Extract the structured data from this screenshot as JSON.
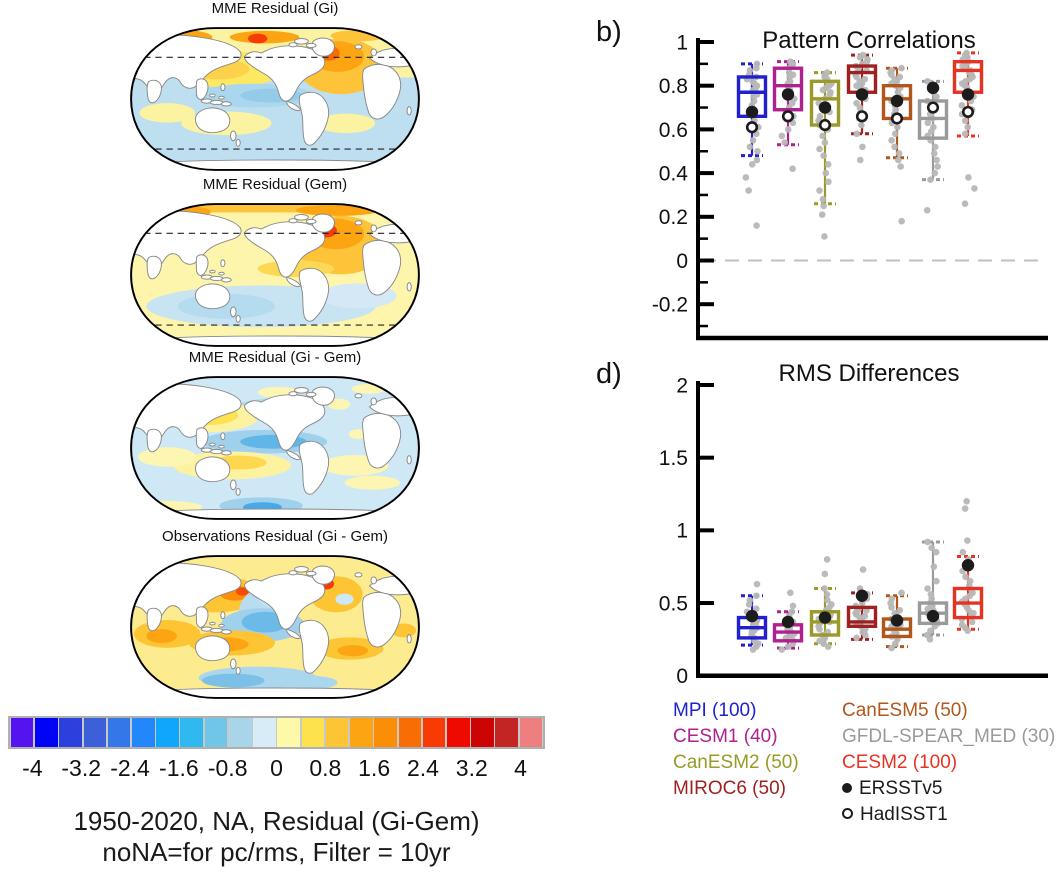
{
  "panels": {
    "b": {
      "label": "b)"
    },
    "d": {
      "label": "d)"
    }
  },
  "maps": [
    {
      "id": "gi",
      "title": "MME Residual (Gi)",
      "dashed_latitudes": true
    },
    {
      "id": "gem",
      "title": "MME Residual (Gem)",
      "dashed_latitudes": true
    },
    {
      "id": "gigem",
      "title": "MME Residual (Gi - Gem)",
      "dashed_latitudes": false
    },
    {
      "id": "obs",
      "title": "Observations Residual (Gi - Gem)",
      "dashed_latitudes": false
    }
  ],
  "colorbar": {
    "colors": [
      "#5414f0",
      "#0004f5",
      "#2b40dc",
      "#3c60d8",
      "#3377e8",
      "#2187fa",
      "#0fa6fb",
      "#30b9ee",
      "#6fc6e6",
      "#a8d5ea",
      "#d8ecf7",
      "#fdf9a8",
      "#fde14d",
      "#fdc434",
      "#fca411",
      "#fb8e06",
      "#f96d05",
      "#f83b05",
      "#ef0a00",
      "#cc0403",
      "#c32424",
      "#ee7f7f"
    ],
    "labels": [
      "-4",
      "-3.2",
      "-2.4",
      "-1.6",
      "-0.8",
      "0",
      "0.8",
      "1.6",
      "2.4",
      "3.2",
      "4"
    ]
  },
  "caption": {
    "line1": "1950-2020, NA, Residual (Gi-Gem)",
    "line2": "noNA=for pc/rms, Filter = 10yr"
  },
  "models": [
    {
      "label": "MPI (100)",
      "name": "MPI",
      "color": "#2020cf"
    },
    {
      "label": "CESM1 (40)",
      "name": "CESM1",
      "color": "#b02190"
    },
    {
      "label": "CanESM2 (50)",
      "name": "CanESM2",
      "color": "#9a9a28"
    },
    {
      "label": "MIROC6 (50)",
      "name": "MIROC6",
      "color": "#9e2121"
    },
    {
      "label": "CanESM5 (50)",
      "name": "CanESM5",
      "color": "#b2571c"
    },
    {
      "label": "GFDL-SPEAR_MED (30)",
      "name": "GFDL-SPEAR_MED",
      "color": "#9a9a9a"
    },
    {
      "label": "CESM2 (100)",
      "name": "CESM2",
      "color": "#e63323"
    }
  ],
  "obs_markers": [
    {
      "label": "ERSSTv5",
      "marker": "filled-circle"
    },
    {
      "label": "HadISST1",
      "marker": "open-circle"
    }
  ],
  "chart_data": [
    {
      "type": "box",
      "panel": "b",
      "title": "Pattern Correlations",
      "ylim": [
        -0.355,
        1.03
      ],
      "yticks_major": [
        1,
        0.8,
        0.6,
        0.4,
        0.2,
        0,
        -0.2
      ],
      "ytick_labels": [
        "1",
        "0.8",
        "0.6",
        "0.4",
        "0.2",
        "0",
        "-0.2"
      ],
      "yticks_minor": [
        0.9,
        0.7,
        0.5,
        0.3,
        0.1,
        -0.1,
        -0.3
      ],
      "zero_dashed_line": 0,
      "series": [
        {
          "model": "MPI",
          "q1": 0.66,
          "median": 0.77,
          "q3": 0.84,
          "whisker_low": 0.48,
          "whisker_high": 0.9,
          "ersstv5": 0.68,
          "hadisst1": 0.61,
          "members": [
            0.9,
            0.88,
            0.87,
            0.85,
            0.84,
            0.83,
            0.82,
            0.81,
            0.8,
            0.79,
            0.78,
            0.77,
            0.76,
            0.75,
            0.73,
            0.71,
            0.69,
            0.67,
            0.64,
            0.61,
            0.58,
            0.55,
            0.52,
            0.5,
            0.46,
            0.44,
            0.38,
            0.32,
            0.16
          ]
        },
        {
          "model": "CESM1",
          "q1": 0.69,
          "median": 0.8,
          "q3": 0.88,
          "whisker_low": 0.53,
          "whisker_high": 0.91,
          "ersstv5": 0.76,
          "hadisst1": 0.66,
          "members": [
            0.91,
            0.9,
            0.89,
            0.88,
            0.86,
            0.85,
            0.84,
            0.82,
            0.81,
            0.8,
            0.78,
            0.76,
            0.74,
            0.72,
            0.7,
            0.68,
            0.66,
            0.63,
            0.6,
            0.57,
            0.54,
            0.42
          ]
        },
        {
          "model": "CanESM2",
          "q1": 0.62,
          "median": 0.74,
          "q3": 0.82,
          "whisker_low": 0.26,
          "whisker_high": 0.86,
          "ersstv5": 0.7,
          "hadisst1": 0.62,
          "members": [
            0.86,
            0.85,
            0.84,
            0.83,
            0.82,
            0.81,
            0.8,
            0.79,
            0.78,
            0.77,
            0.76,
            0.74,
            0.72,
            0.7,
            0.68,
            0.66,
            0.64,
            0.62,
            0.6,
            0.57,
            0.54,
            0.51,
            0.48,
            0.44,
            0.4,
            0.36,
            0.32,
            0.28,
            0.25,
            0.21,
            0.11
          ]
        },
        {
          "model": "MIROC6",
          "q1": 0.77,
          "median": 0.86,
          "q3": 0.89,
          "whisker_low": 0.58,
          "whisker_high": 0.94,
          "ersstv5": 0.76,
          "hadisst1": 0.66,
          "members": [
            0.94,
            0.93,
            0.92,
            0.91,
            0.9,
            0.89,
            0.88,
            0.87,
            0.86,
            0.85,
            0.84,
            0.83,
            0.82,
            0.81,
            0.8,
            0.79,
            0.78,
            0.76,
            0.74,
            0.72,
            0.7,
            0.68,
            0.65,
            0.62,
            0.58,
            0.52,
            0.46
          ]
        },
        {
          "model": "CanESM5",
          "q1": 0.65,
          "median": 0.74,
          "q3": 0.8,
          "whisker_low": 0.47,
          "whisker_high": 0.88,
          "ersstv5": 0.73,
          "hadisst1": 0.65,
          "members": [
            0.88,
            0.87,
            0.86,
            0.85,
            0.84,
            0.83,
            0.82,
            0.81,
            0.8,
            0.79,
            0.77,
            0.75,
            0.73,
            0.71,
            0.69,
            0.67,
            0.65,
            0.63,
            0.61,
            0.58,
            0.55,
            0.52,
            0.49,
            0.46,
            0.43,
            0.18
          ]
        },
        {
          "model": "GFDL-SPEAR_MED",
          "q1": 0.56,
          "median": 0.65,
          "q3": 0.73,
          "whisker_low": 0.37,
          "whisker_high": 0.82,
          "ersstv5": 0.79,
          "hadisst1": 0.7,
          "members": [
            0.82,
            0.81,
            0.79,
            0.77,
            0.75,
            0.73,
            0.71,
            0.69,
            0.67,
            0.65,
            0.63,
            0.61,
            0.59,
            0.57,
            0.55,
            0.52,
            0.49,
            0.46,
            0.43,
            0.4,
            0.37,
            0.23
          ]
        },
        {
          "model": "CESM2",
          "q1": 0.77,
          "median": 0.87,
          "q3": 0.91,
          "whisker_low": 0.57,
          "whisker_high": 0.95,
          "ersstv5": 0.76,
          "hadisst1": 0.68,
          "members": [
            0.95,
            0.94,
            0.93,
            0.92,
            0.91,
            0.9,
            0.89,
            0.88,
            0.87,
            0.86,
            0.85,
            0.84,
            0.83,
            0.82,
            0.81,
            0.8,
            0.79,
            0.77,
            0.75,
            0.73,
            0.71,
            0.69,
            0.67,
            0.64,
            0.61,
            0.58,
            0.38,
            0.33,
            0.26
          ]
        }
      ]
    },
    {
      "type": "box",
      "panel": "d",
      "title": "RMS Differences",
      "ylim": [
        0,
        2.02
      ],
      "yticks_major": [
        2,
        1.5,
        1,
        0.5,
        0
      ],
      "ytick_labels": [
        "2",
        "1.5",
        "1",
        "0.5",
        "0"
      ],
      "yticks_minor": [],
      "zero_dashed_line": null,
      "series": [
        {
          "model": "MPI",
          "q1": 0.26,
          "median": 0.33,
          "q3": 0.4,
          "whisker_low": 0.21,
          "whisker_high": 0.55,
          "ersstv5": 0.41,
          "hadisst1": null,
          "members": [
            0.63,
            0.55,
            0.52,
            0.49,
            0.46,
            0.44,
            0.42,
            0.4,
            0.38,
            0.36,
            0.35,
            0.34,
            0.33,
            0.32,
            0.31,
            0.3,
            0.28,
            0.26,
            0.24,
            0.22,
            0.2,
            0.18
          ]
        },
        {
          "model": "CESM1",
          "q1": 0.24,
          "median": 0.3,
          "q3": 0.35,
          "whisker_low": 0.19,
          "whisker_high": 0.44,
          "ersstv5": 0.37,
          "hadisst1": null,
          "members": [
            0.57,
            0.48,
            0.44,
            0.41,
            0.39,
            0.37,
            0.35,
            0.34,
            0.33,
            0.32,
            0.31,
            0.3,
            0.29,
            0.28,
            0.27,
            0.26,
            0.24,
            0.22,
            0.2,
            0.18
          ]
        },
        {
          "model": "CanESM2",
          "q1": 0.28,
          "median": 0.37,
          "q3": 0.44,
          "whisker_low": 0.22,
          "whisker_high": 0.6,
          "ersstv5": 0.4,
          "hadisst1": null,
          "members": [
            0.8,
            0.7,
            0.6,
            0.56,
            0.52,
            0.49,
            0.47,
            0.45,
            0.43,
            0.42,
            0.41,
            0.4,
            0.39,
            0.38,
            0.37,
            0.36,
            0.34,
            0.32,
            0.3,
            0.28,
            0.26,
            0.24,
            0.22,
            0.2
          ]
        },
        {
          "model": "MIROC6",
          "q1": 0.34,
          "median": 0.37,
          "q3": 0.47,
          "whisker_low": 0.25,
          "whisker_high": 0.57,
          "ersstv5": 0.55,
          "hadisst1": null,
          "members": [
            0.73,
            0.6,
            0.56,
            0.53,
            0.5,
            0.48,
            0.46,
            0.45,
            0.44,
            0.43,
            0.42,
            0.41,
            0.4,
            0.38,
            0.36,
            0.34,
            0.32,
            0.3,
            0.28,
            0.26
          ]
        },
        {
          "model": "CanESM5",
          "q1": 0.27,
          "median": 0.32,
          "q3": 0.39,
          "whisker_low": 0.2,
          "whisker_high": 0.55,
          "ersstv5": 0.38,
          "hadisst1": null,
          "members": [
            0.57,
            0.53,
            0.5,
            0.47,
            0.45,
            0.43,
            0.41,
            0.39,
            0.38,
            0.37,
            0.36,
            0.35,
            0.34,
            0.33,
            0.32,
            0.31,
            0.29,
            0.27,
            0.25,
            0.22,
            0.19
          ]
        },
        {
          "model": "GFDL-SPEAR_MED",
          "q1": 0.36,
          "median": 0.43,
          "q3": 0.5,
          "whisker_low": 0.28,
          "whisker_high": 0.92,
          "ersstv5": 0.41,
          "hadisst1": null,
          "members": [
            0.92,
            0.88,
            0.85,
            0.75,
            0.65,
            0.6,
            0.56,
            0.53,
            0.5,
            0.48,
            0.46,
            0.45,
            0.44,
            0.43,
            0.42,
            0.41,
            0.4,
            0.38,
            0.36,
            0.34,
            0.31,
            0.28,
            0.25
          ]
        },
        {
          "model": "CESM2",
          "q1": 0.4,
          "median": 0.5,
          "q3": 0.6,
          "whisker_low": 0.32,
          "whisker_high": 0.82,
          "ersstv5": 0.76,
          "hadisst1": null,
          "members": [
            1.2,
            1.15,
            0.93,
            0.85,
            0.8,
            0.76,
            0.72,
            0.68,
            0.65,
            0.62,
            0.59,
            0.57,
            0.55,
            0.53,
            0.51,
            0.49,
            0.47,
            0.45,
            0.43,
            0.41,
            0.39,
            0.37,
            0.35,
            0.33,
            0.31
          ]
        }
      ]
    }
  ]
}
